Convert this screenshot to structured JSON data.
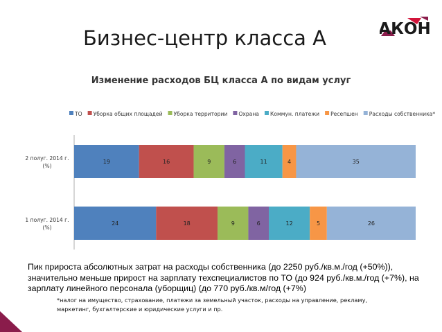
{
  "slide": {
    "title": "Бизнес-центр класса А",
    "logo_text": "АКОН",
    "summary": "Пик прироста абсолютных  затрат на расходы собственника (до 2250 руб./кв.м./год (+50%)), значительно меньше прирост на зарплату  техспециалистов  по ТО (до 924 руб./кв.м./год (+7%), на зарплату  линейного персонала (уборщиц) (до 770 руб./кв.м/год (+7%)",
    "footnote": "*налог на имущество, страхование, платежи за земельный участок, расходы на управление, рекламу, маркетинг, бухгалтерские и юридические услуги и пр."
  },
  "colors": {
    "brand": "#8a1c4b",
    "accent": "#d2143a"
  },
  "chart_data": {
    "type": "bar",
    "orientation": "horizontal",
    "stacked": true,
    "title": "Изменение расходов БЦ класса А по видам услуг",
    "legend_position": "top",
    "grid": false,
    "categories": [
      "2 полуг. 2014 г. (%)",
      "1 полуг. 2014 г. (%)"
    ],
    "series": [
      {
        "name": "ТО",
        "color": "#4f81bd",
        "values": [
          19,
          24
        ]
      },
      {
        "name": "Уборка общих площадей",
        "color": "#c0504d",
        "values": [
          16,
          18
        ]
      },
      {
        "name": "Уборка территории",
        "color": "#9bbb59",
        "values": [
          9,
          9
        ]
      },
      {
        "name": "Охрана",
        "color": "#8064a2",
        "values": [
          6,
          6
        ]
      },
      {
        "name": "Коммун. платежи",
        "color": "#4bacc6",
        "values": [
          11,
          12
        ]
      },
      {
        "name": "Ресепшен",
        "color": "#f79646",
        "values": [
          4,
          5
        ]
      },
      {
        "name": "Расходы собственника*",
        "color": "#95b3d7",
        "values": [
          35,
          26
        ]
      }
    ]
  }
}
